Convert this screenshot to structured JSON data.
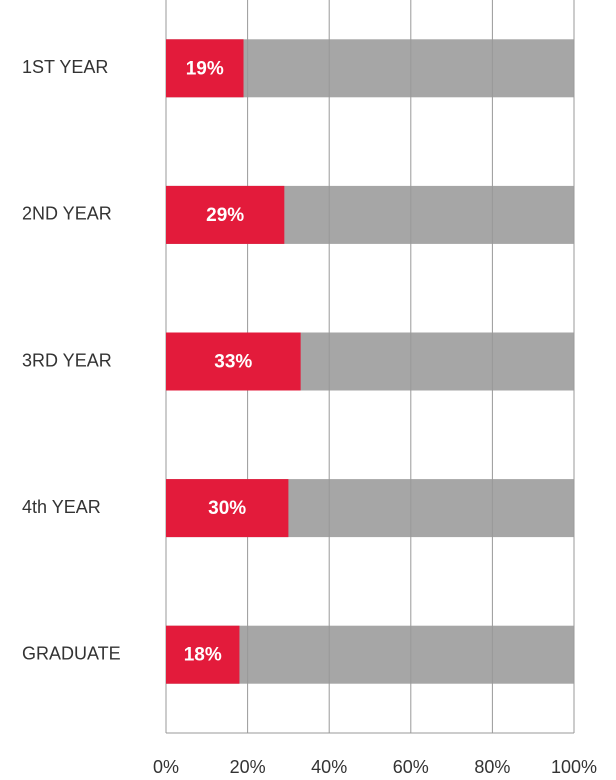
{
  "chart_data": {
    "type": "bar",
    "orientation": "horizontal",
    "categories": [
      "1ST YEAR",
      "2ND YEAR",
      "3RD YEAR",
      "4th YEAR",
      "GRADUATE"
    ],
    "values": [
      19,
      29,
      33,
      30,
      18
    ],
    "value_labels": [
      "19%",
      "29%",
      "33%",
      "30%",
      "18%"
    ],
    "color": "#e31b3b",
    "track_color": "#a6a6a6",
    "xlim": [
      0,
      100
    ],
    "xticks": [
      {
        "value": 0,
        "label": "0%"
      },
      {
        "value": 20,
        "label": "20%"
      },
      {
        "value": 40,
        "label": "40%"
      },
      {
        "value": 60,
        "label": "60%"
      },
      {
        "value": 80,
        "label": "80%"
      },
      {
        "value": 100,
        "label": "100%"
      }
    ],
    "grid": true
  }
}
